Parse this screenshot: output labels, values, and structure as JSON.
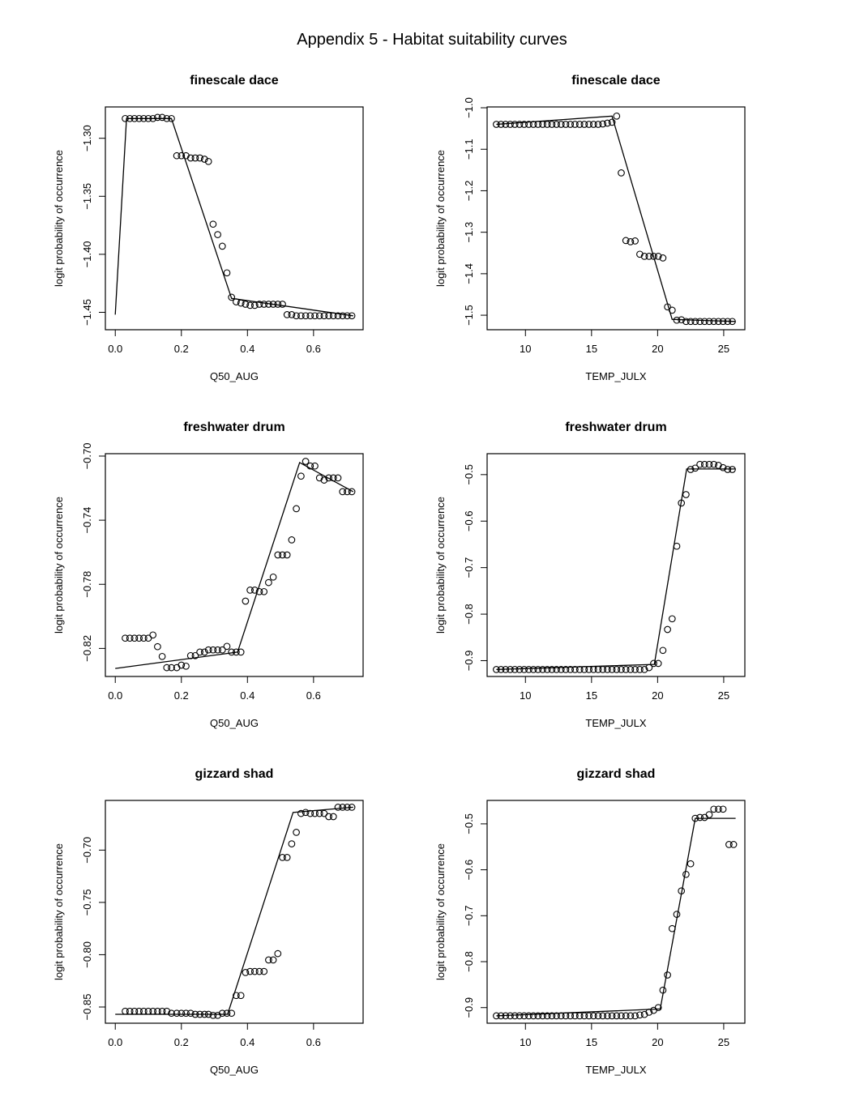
{
  "page": {
    "title": "Appendix 5 - Habitat suitability curves"
  },
  "chart_data": [
    {
      "type": "scatter",
      "title": "finescale dace",
      "xlabel": "Q50_AUG",
      "ylabel": "logit probability of occurrence",
      "xlim": [
        -0.03,
        0.75
      ],
      "ylim": [
        -1.465,
        -1.273
      ],
      "xticks": [
        0.0,
        0.2,
        0.4,
        0.6
      ],
      "xticklabels": [
        "0.0",
        "0.2",
        "0.4",
        "0.6"
      ],
      "yticks": [
        -1.3,
        -1.35,
        -1.4,
        -1.45
      ],
      "yticklabels": [
        "-1.30",
        "-1.35",
        "-1.40",
        "-1.45"
      ],
      "points": {
        "x": [
          0.03,
          0.044,
          0.058,
          0.072,
          0.086,
          0.1,
          0.114,
          0.128,
          0.142,
          0.156,
          0.17,
          0.186,
          0.2,
          0.214,
          0.228,
          0.242,
          0.256,
          0.27,
          0.282,
          0.296,
          0.31,
          0.324,
          0.338,
          0.352,
          0.366,
          0.38,
          0.394,
          0.408,
          0.422,
          0.436,
          0.45,
          0.464,
          0.478,
          0.492,
          0.506,
          0.52,
          0.534,
          0.548,
          0.562,
          0.576,
          0.59,
          0.604,
          0.618,
          0.632,
          0.646,
          0.66,
          0.674,
          0.688,
          0.702,
          0.716
        ],
        "y": [
          -1.283,
          -1.283,
          -1.283,
          -1.283,
          -1.283,
          -1.283,
          -1.283,
          -1.282,
          -1.282,
          -1.283,
          -1.283,
          -1.315,
          -1.315,
          -1.315,
          -1.317,
          -1.317,
          -1.317,
          -1.318,
          -1.32,
          -1.374,
          -1.383,
          -1.393,
          -1.416,
          -1.437,
          -1.441,
          -1.442,
          -1.443,
          -1.444,
          -1.444,
          -1.443,
          -1.443,
          -1.443,
          -1.443,
          -1.443,
          -1.443,
          -1.452,
          -1.452,
          -1.453,
          -1.453,
          -1.453,
          -1.453,
          -1.453,
          -1.453,
          -1.453,
          -1.453,
          -1.453,
          -1.453,
          -1.453,
          -1.453,
          -1.453
        ]
      },
      "fit_line": {
        "x": [
          0.0,
          0.034,
          0.17,
          0.352,
          0.72
        ],
        "y": [
          -1.452,
          -1.283,
          -1.283,
          -1.438,
          -1.453
        ]
      }
    },
    {
      "type": "scatter",
      "title": "finescale dace",
      "xlabel": "TEMP_JULX",
      "ylabel": "logit probability of occurrence",
      "xlim": [
        7.1,
        26.6
      ],
      "ylim": [
        -1.535,
        -0.998
      ],
      "xticks": [
        10,
        15,
        20,
        25
      ],
      "xticklabels": [
        "10",
        "15",
        "20",
        "25"
      ],
      "yticks": [
        -1.0,
        -1.1,
        -1.2,
        -1.3,
        -1.4,
        -1.5
      ],
      "yticklabels": [
        "-1.0",
        "-1.1",
        "-1.2",
        "-1.3",
        "-1.4",
        "-1.5"
      ],
      "points": {
        "x": [
          7.8,
          8.15,
          8.5,
          8.85,
          9.2,
          9.55,
          9.9,
          10.25,
          10.6,
          10.95,
          11.3,
          11.65,
          12.0,
          12.35,
          12.7,
          13.05,
          13.4,
          13.75,
          14.1,
          14.45,
          14.8,
          15.15,
          15.5,
          15.85,
          16.2,
          16.55,
          16.9,
          17.25,
          17.6,
          17.95,
          18.3,
          18.65,
          19.0,
          19.35,
          19.7,
          20.05,
          20.4,
          20.75,
          21.1,
          21.45,
          21.8,
          22.15,
          22.5,
          22.85,
          23.2,
          23.55,
          23.9,
          24.25,
          24.6,
          24.95,
          25.3,
          25.65
        ],
        "y": [
          -1.04,
          -1.04,
          -1.04,
          -1.04,
          -1.04,
          -1.04,
          -1.04,
          -1.04,
          -1.04,
          -1.04,
          -1.04,
          -1.04,
          -1.04,
          -1.04,
          -1.04,
          -1.04,
          -1.04,
          -1.04,
          -1.04,
          -1.04,
          -1.04,
          -1.04,
          -1.04,
          -1.039,
          -1.037,
          -1.035,
          -1.02,
          -1.157,
          -1.32,
          -1.323,
          -1.321,
          -1.353,
          -1.358,
          -1.358,
          -1.358,
          -1.358,
          -1.362,
          -1.48,
          -1.488,
          -1.512,
          -1.511,
          -1.515,
          -1.515,
          -1.515,
          -1.515,
          -1.515,
          -1.515,
          -1.515,
          -1.515,
          -1.515,
          -1.515,
          -1.515
        ]
      },
      "fit_line": {
        "x": [
          7.8,
          16.55,
          21.1,
          25.9
        ],
        "y": [
          -1.04,
          -1.02,
          -1.51,
          -1.515
        ]
      }
    },
    {
      "type": "scatter",
      "title": "freshwater drum",
      "xlabel": "Q50_AUG",
      "ylabel": "logit probability of occurrence",
      "xlim": [
        -0.03,
        0.75
      ],
      "ylim": [
        -0.8375,
        -0.6985
      ],
      "xticks": [
        0.0,
        0.2,
        0.4,
        0.6
      ],
      "xticklabels": [
        "0.0",
        "0.2",
        "0.4",
        "0.6"
      ],
      "yticks": [
        -0.7,
        -0.74,
        -0.78,
        -0.82
      ],
      "yticklabels": [
        "-0.70",
        "-0.74",
        "-0.78",
        "-0.82"
      ],
      "points": {
        "x": [
          0.03,
          0.044,
          0.058,
          0.072,
          0.086,
          0.1,
          0.114,
          0.128,
          0.142,
          0.156,
          0.17,
          0.186,
          0.2,
          0.214,
          0.228,
          0.242,
          0.256,
          0.27,
          0.282,
          0.296,
          0.31,
          0.324,
          0.338,
          0.352,
          0.366,
          0.38,
          0.394,
          0.408,
          0.422,
          0.436,
          0.45,
          0.464,
          0.478,
          0.492,
          0.506,
          0.52,
          0.534,
          0.548,
          0.562,
          0.576,
          0.59,
          0.604,
          0.618,
          0.632,
          0.646,
          0.66,
          0.674,
          0.688,
          0.702,
          0.716
        ],
        "y": [
          -0.8136,
          -0.8136,
          -0.8136,
          -0.8136,
          -0.8136,
          -0.8136,
          -0.8116,
          -0.8189,
          -0.825,
          -0.832,
          -0.832,
          -0.832,
          -0.8304,
          -0.8311,
          -0.8245,
          -0.8245,
          -0.8223,
          -0.8223,
          -0.8209,
          -0.8209,
          -0.8209,
          -0.8209,
          -0.8187,
          -0.8223,
          -0.8223,
          -0.8223,
          -0.7905,
          -0.7836,
          -0.7836,
          -0.7846,
          -0.7846,
          -0.7789,
          -0.7755,
          -0.7617,
          -0.7617,
          -0.7617,
          -0.7523,
          -0.7328,
          -0.7125,
          -0.7033,
          -0.7062,
          -0.7062,
          -0.7136,
          -0.715,
          -0.7136,
          -0.7136,
          -0.7136,
          -0.7222,
          -0.7222,
          -0.7222
        ]
      },
      "fit_line": {
        "x": [
          0.0,
          0.37,
          0.558,
          0.72
        ],
        "y": [
          -0.8325,
          -0.8223,
          -0.704,
          -0.7222
        ]
      }
    },
    {
      "type": "scatter",
      "title": "freshwater drum",
      "xlabel": "TEMP_JULX",
      "ylabel": "logit probability of occurrence",
      "xlim": [
        7.1,
        26.6
      ],
      "ylim": [
        -0.934,
        -0.455
      ],
      "xticks": [
        10,
        15,
        20,
        25
      ],
      "xticklabels": [
        "10",
        "15",
        "20",
        "25"
      ],
      "yticks": [
        -0.5,
        -0.6,
        -0.7,
        -0.8,
        -0.9
      ],
      "yticklabels": [
        "-0.5",
        "-0.6",
        "-0.7",
        "-0.8",
        "-0.9"
      ],
      "points": {
        "x": [
          7.8,
          8.15,
          8.5,
          8.85,
          9.2,
          9.55,
          9.9,
          10.25,
          10.6,
          10.95,
          11.3,
          11.65,
          12.0,
          12.35,
          12.7,
          13.05,
          13.4,
          13.75,
          14.1,
          14.45,
          14.8,
          15.15,
          15.5,
          15.85,
          16.2,
          16.55,
          16.9,
          17.25,
          17.6,
          17.95,
          18.3,
          18.65,
          19.0,
          19.35,
          19.7,
          20.05,
          20.4,
          20.75,
          21.1,
          21.45,
          21.8,
          22.15,
          22.5,
          22.85,
          23.2,
          23.55,
          23.9,
          24.25,
          24.6,
          24.95,
          25.3,
          25.65
        ],
        "y": [
          -0.919,
          -0.919,
          -0.919,
          -0.919,
          -0.919,
          -0.919,
          -0.919,
          -0.919,
          -0.919,
          -0.919,
          -0.919,
          -0.919,
          -0.919,
          -0.919,
          -0.919,
          -0.919,
          -0.919,
          -0.919,
          -0.919,
          -0.919,
          -0.919,
          -0.919,
          -0.919,
          -0.919,
          -0.919,
          -0.919,
          -0.919,
          -0.919,
          -0.919,
          -0.919,
          -0.919,
          -0.919,
          -0.919,
          -0.915,
          -0.906,
          -0.906,
          -0.878,
          -0.833,
          -0.81,
          -0.654,
          -0.561,
          -0.543,
          -0.489,
          -0.486,
          -0.478,
          -0.478,
          -0.478,
          -0.478,
          -0.48,
          -0.485,
          -0.489,
          -0.489
        ]
      },
      "fit_line": {
        "x": [
          7.8,
          19.75,
          22.2,
          25.9
        ],
        "y": [
          -0.919,
          -0.908,
          -0.488,
          -0.488
        ]
      }
    },
    {
      "type": "scatter",
      "title": "gizzard shad",
      "xlabel": "Q50_AUG",
      "ylabel": "logit probability of occurrence",
      "xlim": [
        -0.03,
        0.75
      ],
      "ylim": [
        -0.8655,
        -0.6525
      ],
      "xticks": [
        0.0,
        0.2,
        0.4,
        0.6
      ],
      "xticklabels": [
        "0.0",
        "0.2",
        "0.4",
        "0.6"
      ],
      "yticks": [
        -0.7,
        -0.75,
        -0.8,
        -0.85
      ],
      "yticklabels": [
        "-0.70",
        "-0.75",
        "-0.80",
        "-0.85"
      ],
      "points": {
        "x": [
          0.03,
          0.044,
          0.058,
          0.072,
          0.086,
          0.1,
          0.114,
          0.128,
          0.142,
          0.156,
          0.17,
          0.186,
          0.2,
          0.214,
          0.228,
          0.242,
          0.256,
          0.27,
          0.282,
          0.296,
          0.31,
          0.324,
          0.338,
          0.352,
          0.366,
          0.38,
          0.394,
          0.408,
          0.422,
          0.436,
          0.45,
          0.464,
          0.478,
          0.492,
          0.506,
          0.52,
          0.534,
          0.548,
          0.562,
          0.576,
          0.59,
          0.604,
          0.618,
          0.632,
          0.646,
          0.66,
          0.674,
          0.688,
          0.702,
          0.716
        ],
        "y": [
          -0.854,
          -0.854,
          -0.854,
          -0.854,
          -0.854,
          -0.854,
          -0.854,
          -0.854,
          -0.854,
          -0.854,
          -0.856,
          -0.856,
          -0.856,
          -0.856,
          -0.856,
          -0.857,
          -0.857,
          -0.857,
          -0.857,
          -0.858,
          -0.858,
          -0.856,
          -0.856,
          -0.856,
          -0.839,
          -0.839,
          -0.817,
          -0.816,
          -0.816,
          -0.816,
          -0.816,
          -0.805,
          -0.805,
          -0.799,
          -0.707,
          -0.707,
          -0.694,
          -0.683,
          -0.665,
          -0.664,
          -0.665,
          -0.665,
          -0.665,
          -0.665,
          -0.668,
          -0.668,
          -0.659,
          -0.659,
          -0.659,
          -0.659
        ]
      },
      "fit_line": {
        "x": [
          0.0,
          0.34,
          0.538,
          0.72
        ],
        "y": [
          -0.857,
          -0.857,
          -0.664,
          -0.659
        ]
      }
    },
    {
      "type": "scatter",
      "title": "gizzard shad",
      "xlabel": "TEMP_JULX",
      "ylabel": "logit probability of occurrence",
      "xlim": [
        7.1,
        26.6
      ],
      "ylim": [
        -0.934,
        -0.449
      ],
      "xticks": [
        10,
        15,
        20,
        25
      ],
      "xticklabels": [
        "10",
        "15",
        "20",
        "25"
      ],
      "yticks": [
        -0.5,
        -0.6,
        -0.7,
        -0.8,
        -0.9
      ],
      "yticklabels": [
        "-0.5",
        "-0.6",
        "-0.7",
        "-0.8",
        "-0.9"
      ],
      "points": {
        "x": [
          7.8,
          8.15,
          8.5,
          8.85,
          9.2,
          9.55,
          9.9,
          10.25,
          10.6,
          10.95,
          11.3,
          11.65,
          12.0,
          12.35,
          12.7,
          13.05,
          13.4,
          13.75,
          14.1,
          14.45,
          14.8,
          15.15,
          15.5,
          15.85,
          16.2,
          16.55,
          16.9,
          17.25,
          17.6,
          17.95,
          18.3,
          18.65,
          19.0,
          19.35,
          19.7,
          20.05,
          20.4,
          20.75,
          21.1,
          21.45,
          21.8,
          22.15,
          22.5,
          22.85,
          23.2,
          23.55,
          23.9,
          24.25,
          24.6,
          24.95,
          25.4,
          25.75
        ],
        "y": [
          -0.918,
          -0.918,
          -0.918,
          -0.918,
          -0.918,
          -0.918,
          -0.918,
          -0.918,
          -0.918,
          -0.918,
          -0.918,
          -0.918,
          -0.918,
          -0.918,
          -0.918,
          -0.918,
          -0.918,
          -0.918,
          -0.918,
          -0.918,
          -0.918,
          -0.918,
          -0.918,
          -0.918,
          -0.918,
          -0.918,
          -0.918,
          -0.918,
          -0.918,
          -0.918,
          -0.918,
          -0.916,
          -0.915,
          -0.91,
          -0.906,
          -0.9,
          -0.862,
          -0.829,
          -0.728,
          -0.697,
          -0.646,
          -0.61,
          -0.587,
          -0.488,
          -0.486,
          -0.486,
          -0.48,
          -0.468,
          -0.468,
          -0.468,
          -0.545,
          -0.545
        ]
      },
      "fit_line": {
        "x": [
          7.8,
          20.2,
          22.85,
          25.9
        ],
        "y": [
          -0.918,
          -0.903,
          -0.488,
          -0.488
        ]
      }
    }
  ]
}
